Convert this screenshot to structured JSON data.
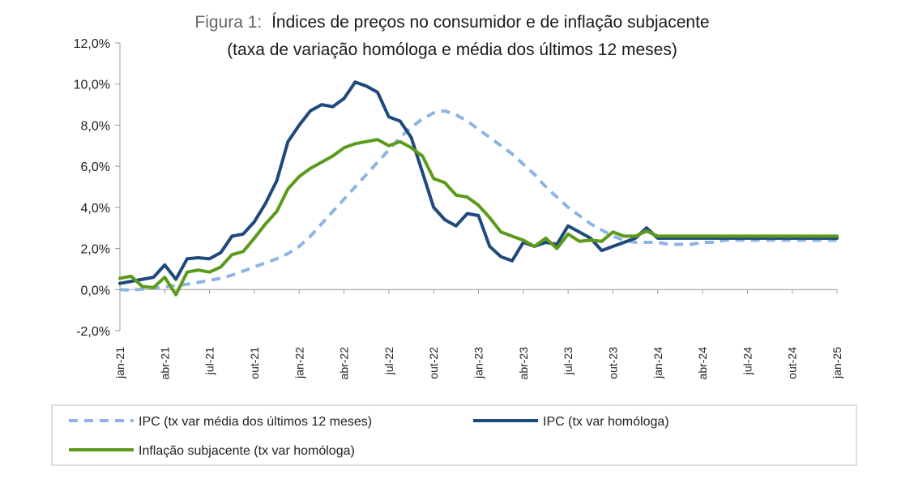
{
  "chart_data": {
    "type": "line",
    "title_prefix": "Figura 1:",
    "title": "Índices de preços no consumidor e de inflação subjacente",
    "subtitle": "(taxa de variação homóloga e média dos últimos 12 meses)",
    "xlabel": "",
    "ylabel": "",
    "ylim": [
      -2,
      12
    ],
    "yticks": [
      "-2,0%",
      "0,0%",
      "2,0%",
      "4,0%",
      "6,0%",
      "8,0%",
      "10,0%",
      "12,0%"
    ],
    "x_tick_labels": [
      "jan-21",
      "abr-21",
      "jul-21",
      "out-21",
      "jan-22",
      "abr-22",
      "jul-22",
      "out-22",
      "jan-23",
      "abr-23",
      "jul-23",
      "out-23",
      "jan-24",
      "abr-24",
      "jul-24",
      "out-24",
      "jan-25"
    ],
    "x_start": "jan-21",
    "x_end": "jan-25",
    "legend_position": "bottom",
    "series": [
      {
        "name": "IPC (tx var média dos últimos 12 meses)",
        "color": "#8EB4E3",
        "style": "dashed",
        "values": [
          0.0,
          -0.03,
          0.02,
          0.07,
          0.13,
          0.2,
          0.26,
          0.35,
          0.45,
          0.55,
          0.7,
          0.9,
          1.1,
          1.3,
          1.5,
          1.75,
          2.1,
          2.6,
          3.2,
          3.8,
          4.4,
          5.0,
          5.6,
          6.2,
          6.8,
          7.4,
          7.9,
          8.3,
          8.6,
          8.7,
          8.5,
          8.2,
          7.8,
          7.4,
          7.0,
          6.6,
          6.1,
          5.6,
          5.0,
          4.5,
          4.0,
          3.6,
          3.2,
          2.9,
          2.6,
          2.4,
          2.3,
          2.3,
          2.3,
          2.2,
          2.2,
          2.2,
          2.3,
          2.3,
          2.4,
          2.4,
          2.4,
          2.4,
          2.4,
          2.4,
          2.4,
          2.4,
          2.4,
          2.4,
          2.4
        ]
      },
      {
        "name": "IPC (tx var homóloga)",
        "color": "#1F497D",
        "style": "solid",
        "values": [
          0.3,
          0.4,
          0.5,
          0.6,
          1.2,
          0.5,
          1.5,
          1.55,
          1.5,
          1.8,
          2.6,
          2.7,
          3.3,
          4.2,
          5.3,
          7.2,
          8.0,
          8.7,
          9.0,
          8.9,
          9.3,
          10.1,
          9.9,
          9.6,
          8.4,
          8.2,
          7.4,
          5.7,
          4.0,
          3.4,
          3.1,
          3.7,
          3.6,
          2.1,
          1.6,
          1.4,
          2.3,
          2.1,
          2.3,
          2.2,
          3.1,
          2.8,
          2.5,
          1.9,
          2.1,
          2.3,
          2.5,
          3.0,
          2.5,
          2.5,
          2.5,
          2.5,
          2.5,
          2.5,
          2.5,
          2.5,
          2.5,
          2.5,
          2.5,
          2.5,
          2.5,
          2.5,
          2.5,
          2.5,
          2.5
        ]
      },
      {
        "name": "Inflação subjacente (tx var homóloga)",
        "color": "#5B9A1A",
        "style": "solid",
        "values": [
          0.55,
          0.65,
          0.15,
          0.1,
          0.6,
          -0.25,
          0.85,
          0.95,
          0.85,
          1.1,
          1.7,
          1.85,
          2.5,
          3.2,
          3.8,
          4.9,
          5.5,
          5.9,
          6.2,
          6.5,
          6.9,
          7.1,
          7.2,
          7.3,
          7.0,
          7.2,
          6.9,
          6.5,
          5.4,
          5.2,
          4.6,
          4.5,
          4.1,
          3.5,
          2.8,
          2.6,
          2.4,
          2.1,
          2.5,
          2.0,
          2.7,
          2.35,
          2.4,
          2.35,
          2.8,
          2.6,
          2.6,
          2.85,
          2.6,
          2.6,
          2.6,
          2.6,
          2.6,
          2.6,
          2.6,
          2.6,
          2.6,
          2.6,
          2.6,
          2.6,
          2.6,
          2.6,
          2.6,
          2.6,
          2.6
        ]
      }
    ]
  }
}
